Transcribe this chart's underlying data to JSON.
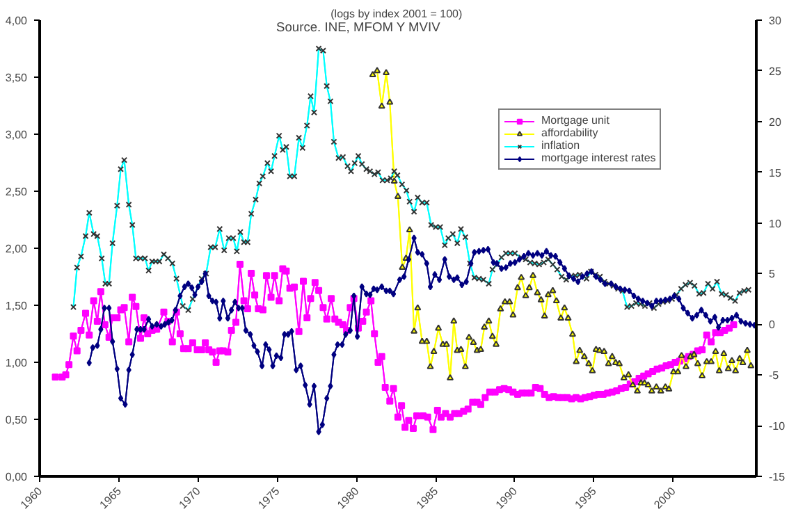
{
  "chart_data": {
    "type": "line",
    "title": "(logs by  index 2001 = 100)",
    "annotations": [
      "Source. INE, MFOM Y MVIV"
    ],
    "xlim": [
      1960,
      2005.25
    ],
    "xticks": [
      1960,
      1965,
      1970,
      1975,
      1980,
      1985,
      1990,
      1995,
      2000
    ],
    "ylim": [
      0,
      4
    ],
    "yticks": [
      {
        "value": 0,
        "label": "0,00"
      },
      {
        "value": 0.5,
        "label": "0,50"
      },
      {
        "value": 1,
        "label": "1,00"
      },
      {
        "value": 1.5,
        "label": "1,50"
      },
      {
        "value": 2,
        "label": "2,00"
      },
      {
        "value": 2.5,
        "label": "2,50"
      },
      {
        "value": 3,
        "label": "3,00"
      },
      {
        "value": 3.5,
        "label": "3,50"
      },
      {
        "value": 4,
        "label": "4,00"
      }
    ],
    "y2lim": [
      -15,
      30
    ],
    "y2ticks": [
      -15,
      -10,
      -5,
      0,
      5,
      10,
      15,
      20,
      25,
      30
    ],
    "grid": false,
    "legend": "top right",
    "series": [
      {
        "name": "Mortgage unit",
        "color": "#ff00ff",
        "marker": "square",
        "x": [
          1960.99,
          1961.42,
          1961.65,
          1961.85,
          1962.13,
          1962.36,
          1962.61,
          1962.9,
          1963.13,
          1963.41,
          1963.64,
          1963.86,
          1964.12,
          1964.38,
          1964.6,
          1964.89,
          1965.12,
          1965.34,
          1965.63,
          1965.85,
          1966.08,
          1966.37,
          1966.59,
          1966.82,
          1967.1,
          1967.39,
          1967.84,
          1968.1,
          1968.38,
          1968.64,
          1968.87,
          1969.09,
          1969.38,
          1969.66,
          1969.95,
          1970.23,
          1970.46,
          1970.68,
          1970.91,
          1971.14,
          1971.37,
          1971.59,
          1971.88,
          1972.11,
          1972.39,
          1972.65,
          1972.9,
          1973.13,
          1973.36,
          1973.58,
          1973.81,
          1974.1,
          1974.32,
          1974.61,
          1974.83,
          1975.12,
          1975.35,
          1975.57,
          1975.8,
          1976.08,
          1976.37,
          1976.65,
          1976.88,
          1977.11,
          1977.39,
          1977.62,
          1977.9,
          1978.13,
          1978.41,
          1978.64,
          1978.87,
          1979.15,
          1979.38,
          1979.61,
          1979.84,
          1980.12,
          1980.4,
          1980.63,
          1980.92,
          1981.14,
          1981.37,
          1981.6,
          1981.82,
          1982.11,
          1982.34,
          1982.62,
          1982.85,
          1983.07,
          1983.3,
          1983.59,
          1983.81,
          1984.21,
          1984.5,
          1984.84,
          1985.12,
          1985.35,
          1985.63,
          1985.92,
          1986.2,
          1986.48,
          1986.77,
          1987.05,
          1987.34,
          1987.62,
          1987.85,
          1988.13,
          1988.42,
          1988.76,
          1989.04,
          1989.33,
          1989.61,
          1989.89,
          1990.18,
          1990.46,
          1990.75,
          1991.03,
          1991.31,
          1991.6,
          1991.88,
          1992.17,
          1992.45,
          1992.74,
          1993.02,
          1993.31,
          1993.59,
          1993.87,
          1994.16,
          1994.44,
          1994.73,
          1995.01,
          1995.29,
          1995.58,
          1995.86,
          1996.15,
          1996.43,
          1996.72,
          1997.0,
          1997.29,
          1997.57,
          1997.85,
          1998.14,
          1998.42,
          1998.71,
          1998.99,
          1999.28,
          1999.56,
          1999.84,
          2000.13,
          2000.41,
          2000.7,
          2000.98,
          2001.27,
          2001.55,
          2001.83,
          2002.12,
          2002.4,
          2002.68,
          2002.97,
          2003.25,
          2003.54,
          2003.82
        ],
        "values": [
          0.87,
          0.87,
          0.89,
          0.98,
          1.23,
          1.1,
          1.28,
          1.43,
          1.24,
          1.54,
          1.36,
          1.62,
          1.33,
          1.22,
          1.39,
          1.39,
          1.46,
          1.48,
          1.18,
          1.57,
          1.49,
          1.21,
          1.39,
          1.25,
          1.28,
          1.29,
          1.44,
          1.36,
          1.18,
          1.44,
          1.25,
          1.12,
          1.12,
          1.17,
          1.11,
          1.11,
          1.17,
          1.11,
          1.09,
          1.0,
          1.1,
          1.1,
          1.09,
          1.28,
          1.35,
          1.86,
          1.54,
          1.47,
          1.78,
          1.59,
          1.47,
          1.46,
          1.76,
          1.57,
          1.76,
          1.54,
          1.82,
          1.8,
          1.65,
          1.66,
          1.27,
          1.71,
          1.39,
          1.56,
          1.7,
          1.63,
          1.48,
          1.38,
          1.56,
          1.38,
          1.35,
          1.33,
          1.28,
          1.48,
          1.56,
          1.3,
          1.36,
          1.44,
          1.54,
          1.25,
          1.0,
          1.05,
          0.78,
          0.66,
          0.77,
          0.52,
          0.62,
          0.43,
          0.49,
          0.42,
          0.53,
          0.53,
          0.52,
          0.41,
          0.58,
          0.52,
          0.55,
          0.52,
          0.55,
          0.55,
          0.57,
          0.59,
          0.65,
          0.65,
          0.63,
          0.69,
          0.74,
          0.74,
          0.76,
          0.77,
          0.76,
          0.74,
          0.72,
          0.73,
          0.73,
          0.73,
          0.78,
          0.77,
          0.72,
          0.69,
          0.7,
          0.69,
          0.69,
          0.69,
          0.68,
          0.69,
          0.68,
          0.69,
          0.7,
          0.71,
          0.72,
          0.72,
          0.73,
          0.74,
          0.75,
          0.77,
          0.78,
          0.81,
          0.83,
          0.86,
          0.88,
          0.9,
          0.92,
          0.94,
          0.95,
          0.97,
          0.98,
          1.0,
          1.01,
          1.03,
          1.05,
          1.07,
          1.1,
          1.11,
          1.24,
          1.18,
          1.26,
          1.26,
          1.28,
          1.3,
          1.33
        ]
      },
      {
        "name": "affordability",
        "color": "#ffff00",
        "marker": "triangle",
        "axis": "y2",
        "x": [
          1981.03,
          1981.31,
          1981.6,
          1981.88,
          1982.11,
          1982.39,
          1982.62,
          1982.9,
          1983.13,
          1983.36,
          1983.64,
          1983.87,
          1984.15,
          1984.44,
          1984.67,
          1984.89,
          1985.18,
          1985.46,
          1985.69,
          1985.92,
          1986.15,
          1986.37,
          1986.6,
          1986.88,
          1987.11,
          1987.39,
          1987.62,
          1987.85,
          1988.08,
          1988.36,
          1988.59,
          1988.82,
          1989.1,
          1989.38,
          1989.67,
          1989.89,
          1990.18,
          1990.41,
          1990.69,
          1990.92,
          1991.15,
          1991.43,
          1991.66,
          1991.88,
          1992.11,
          1992.4,
          1992.63,
          1992.91,
          1993.14,
          1993.37,
          1993.65,
          1993.88,
          1994.1,
          1994.39,
          1994.67,
          1994.9,
          1995.13,
          1995.35,
          1995.64,
          1995.92,
          1996.15,
          1996.37,
          1996.6,
          1996.89,
          1997.18,
          1997.45,
          1997.74,
          1997.97,
          1998.19,
          1998.42,
          1998.65,
          1998.94,
          1999.22,
          1999.51,
          1999.73,
          2000.02,
          2000.3,
          2000.53,
          2000.81,
          2001.09,
          2001.32,
          2001.55,
          2001.83,
          2002.12,
          2002.4,
          2002.68,
          2002.91,
          2003.2,
          2003.48,
          2003.71,
          2003.94,
          2004.2,
          2004.4,
          2004.68,
          2004.91
        ],
        "values": [
          24.6,
          25.0,
          21.5,
          24.8,
          21.9,
          14.1,
          12.6,
          5.6,
          6.5,
          9.3,
          -0.7,
          1.6,
          -1.7,
          -1.7,
          -4.2,
          -2.7,
          -0.4,
          -2.0,
          -2.0,
          -5.3,
          0.3,
          -2.6,
          -2.5,
          -4.2,
          -1.3,
          -1.8,
          -2.6,
          -2.5,
          -0.3,
          0.3,
          -1.2,
          -2.0,
          1.5,
          2.2,
          2.2,
          0.9,
          3.6,
          4.6,
          2.8,
          3.6,
          4.8,
          3.1,
          2.4,
          0.8,
          2.9,
          3.3,
          2.3,
          0.6,
          1.6,
          0.6,
          -1.0,
          -3.7,
          -2.6,
          -3.2,
          -3.9,
          -4.6,
          -2.5,
          -2.6,
          -2.7,
          -3.9,
          -3.2,
          -3.8,
          -3.9,
          -5.3,
          -5.0,
          -6.0,
          -6.6,
          -5.8,
          -5.8,
          -6.0,
          -6.6,
          -6.2,
          -6.6,
          -6.2,
          -6.4,
          -4.7,
          -4.7,
          -3.1,
          -4.2,
          -3.2,
          -3.0,
          -3.9,
          -5.1,
          -3.7,
          -3.7,
          -2.7,
          -4.6,
          -2.9,
          -4.4,
          -3.6,
          -4.6,
          -3.4,
          -3.8,
          -2.6,
          -4.1
        ]
      },
      {
        "name": "inflation",
        "color": "#00ffff",
        "marker": "cross",
        "axis": "y2",
        "x": [
          1962.13,
          1962.36,
          1962.61,
          1962.9,
          1963.13,
          1963.41,
          1963.64,
          1963.92,
          1964.15,
          1964.38,
          1964.6,
          1964.89,
          1965.12,
          1965.34,
          1965.63,
          1965.85,
          1966.08,
          1966.37,
          1966.65,
          1966.88,
          1967.1,
          1967.33,
          1967.56,
          1967.84,
          1968.1,
          1968.38,
          1968.64,
          1969.04,
          1969.38,
          1969.66,
          1970.23,
          1970.51,
          1970.8,
          1971.08,
          1971.37,
          1971.65,
          1971.94,
          1972.22,
          1972.45,
          1972.67,
          1972.9,
          1973.13,
          1973.36,
          1973.64,
          1973.87,
          1974.09,
          1974.38,
          1974.61,
          1974.83,
          1975.12,
          1975.35,
          1975.57,
          1975.8,
          1976.08,
          1976.37,
          1976.6,
          1976.88,
          1977.11,
          1977.33,
          1977.62,
          1977.9,
          1978.13,
          1978.36,
          1978.58,
          1978.87,
          1979.15,
          1979.44,
          1979.66,
          1979.89,
          1980.12,
          1980.35,
          1980.63,
          1980.86,
          1981.14,
          1981.37,
          1981.65,
          1981.94,
          1982.17,
          1982.39,
          1982.59,
          1982.88,
          1983.16,
          1983.36,
          1983.64,
          1983.87,
          1984.15,
          1984.44,
          1984.72,
          1985.01,
          1985.29,
          1985.58,
          1985.8,
          1986.09,
          1986.37,
          1986.6,
          1986.88,
          1987.17,
          1987.45,
          1987.74,
          1988.02,
          1988.36,
          1988.59,
          1988.87,
          1989.16,
          1989.44,
          1989.72,
          1990.01,
          1990.41,
          1990.69,
          1990.97,
          1991.26,
          1991.54,
          1991.83,
          1992.11,
          1992.4,
          1992.68,
          1992.96,
          1993.25,
          1993.53,
          1993.82,
          1994.1,
          1994.53,
          1994.81,
          1995.1,
          1995.38,
          1995.67,
          1995.95,
          1996.23,
          1996.52,
          1996.8,
          1997.09,
          1997.37,
          1997.66,
          1997.94,
          1998.22,
          1998.51,
          1998.79,
          1999.08,
          1999.36,
          1999.65,
          1999.93,
          2000.21,
          2000.5,
          2000.78,
          2001.07,
          2001.35,
          2001.64,
          2001.92,
          2002.2,
          2002.49,
          2002.77,
          2003.06,
          2003.34,
          2003.62,
          2003.91,
          2004.19,
          2004.48,
          2004.76
        ],
        "values": [
          1.7,
          5.6,
          6.7,
          8.7,
          11.0,
          8.9,
          8.7,
          6.5,
          4.0,
          4.0,
          8.0,
          11.7,
          15.3,
          16.2,
          11.8,
          9.8,
          6.5,
          6.5,
          6.5,
          5.3,
          6.2,
          6.2,
          6.2,
          6.9,
          6.5,
          6.0,
          4.5,
          1.8,
          1.4,
          2.5,
          4.5,
          5.0,
          7.6,
          7.6,
          9.4,
          7.3,
          8.5,
          8.5,
          7.2,
          9.1,
          8.1,
          8.1,
          10.9,
          12.3,
          13.9,
          14.6,
          15.9,
          15.1,
          16.6,
          18.6,
          17.2,
          17.5,
          14.6,
          14.6,
          18.4,
          17.4,
          19.6,
          22.5,
          20.9,
          27.2,
          27.0,
          23.5,
          22.0,
          18.0,
          16.4,
          16.5,
          15.6,
          15.1,
          15.9,
          16.6,
          15.8,
          15.3,
          15.1,
          14.8,
          15.0,
          14.2,
          14.2,
          14.4,
          15.1,
          14.7,
          13.8,
          13.2,
          12.1,
          11.1,
          12.5,
          12.0,
          12.0,
          9.8,
          9.6,
          9.6,
          7.8,
          8.5,
          8.9,
          8.0,
          9.4,
          8.6,
          6.0,
          4.6,
          4.5,
          4.4,
          4.0,
          5.4,
          5.9,
          6.6,
          7.0,
          7.0,
          7.0,
          6.6,
          6.4,
          6.1,
          6.0,
          5.9,
          6.1,
          6.4,
          5.9,
          5.4,
          4.7,
          4.4,
          4.7,
          4.8,
          4.9,
          4.5,
          5.2,
          4.9,
          4.7,
          4.2,
          4.0,
          3.8,
          3.5,
          3.3,
          1.7,
          1.8,
          2.1,
          2.0,
          1.8,
          2.1,
          1.6,
          2.0,
          2.2,
          2.3,
          2.5,
          2.9,
          3.5,
          3.9,
          4.1,
          3.8,
          3.0,
          3.1,
          4.0,
          3.5,
          4.2,
          3.0,
          2.9,
          2.6,
          2.3,
          3.1,
          3.3,
          3.4
        ]
      },
      {
        "name": "mortgage interest rates",
        "color": "#000080",
        "marker": "diamond",
        "axis": "y2",
        "x": [
          1963.13,
          1963.35,
          1963.64,
          1963.86,
          1964.09,
          1964.38,
          1964.6,
          1964.89,
          1965.12,
          1965.4,
          1965.63,
          1965.85,
          1966.14,
          1966.37,
          1966.59,
          1966.88,
          1967.1,
          1967.39,
          1967.67,
          1967.9,
          1968.13,
          1968.35,
          1968.58,
          1968.87,
          1969.15,
          1969.38,
          1969.61,
          1969.8,
          1970.0,
          1970.23,
          1970.46,
          1970.68,
          1970.91,
          1971.14,
          1971.37,
          1971.59,
          1971.88,
          1972.11,
          1972.33,
          1972.56,
          1972.79,
          1973.02,
          1973.3,
          1973.53,
          1973.75,
          1974.04,
          1974.27,
          1974.49,
          1974.72,
          1974.95,
          1975.23,
          1975.46,
          1975.69,
          1975.91,
          1976.2,
          1976.48,
          1976.77,
          1977.05,
          1977.33,
          1977.62,
          1977.85,
          1978.13,
          1978.36,
          1978.58,
          1978.81,
          1979.1,
          1979.32,
          1979.61,
          1979.84,
          1980.06,
          1980.35,
          1980.63,
          1980.86,
          1981.09,
          1981.31,
          1981.6,
          1981.88,
          1982.11,
          1982.34,
          1982.73,
          1983.01,
          1983.3,
          1983.64,
          1983.87,
          1984.15,
          1984.44,
          1984.67,
          1984.95,
          1985.24,
          1985.58,
          1985.86,
          1986.15,
          1986.37,
          1986.66,
          1986.94,
          1987.23,
          1987.45,
          1987.74,
          1988.02,
          1988.31,
          1988.65,
          1988.87,
          1989.16,
          1989.44,
          1989.72,
          1990.01,
          1990.29,
          1990.58,
          1990.86,
          1991.15,
          1991.43,
          1991.71,
          1992.0,
          1992.28,
          1992.57,
          1992.85,
          1993.14,
          1993.42,
          1993.71,
          1993.99,
          1994.27,
          1994.56,
          1994.84,
          1995.13,
          1995.41,
          1995.7,
          1996.09,
          1996.38,
          1996.66,
          1996.95,
          1997.23,
          1997.52,
          1997.8,
          1998.08,
          1998.37,
          1998.65,
          1998.94,
          1999.22,
          1999.51,
          1999.79,
          2000.07,
          2000.36,
          2000.64,
          2000.92,
          2001.21,
          2001.49,
          2001.78,
          2002.06,
          2002.35,
          2002.63,
          2002.86,
          2003.14,
          2003.43,
          2003.71,
          2004.0,
          2004.28,
          2004.57,
          2004.85,
          2005.13
        ],
        "values": [
          -3.8,
          -2.3,
          -2.1,
          -0.5,
          1.6,
          1.6,
          -1.7,
          -4.4,
          -7.3,
          -7.9,
          -4.5,
          -3.0,
          -0.5,
          -0.5,
          -0.5,
          0.5,
          -0.2,
          0.0,
          -0.2,
          0.0,
          0.2,
          0.4,
          1.4,
          2.8,
          3.7,
          4.0,
          3.6,
          2.9,
          3.7,
          4.2,
          5.0,
          2.8,
          2.3,
          2.2,
          0.6,
          2.3,
          0.6,
          1.4,
          2.2,
          1.6,
          1.6,
          -0.6,
          -1.0,
          -2.1,
          -2.7,
          -4.1,
          -2.0,
          -2.5,
          -4.1,
          -3.1,
          -3.3,
          -1.0,
          -1.0,
          -0.7,
          -4.5,
          -4.1,
          -6.0,
          -7.9,
          -6.1,
          -10.6,
          -9.9,
          -7.3,
          -6.1,
          -3.0,
          -2.0,
          -2.0,
          -1.0,
          -0.6,
          2.8,
          -1.2,
          3.7,
          3.0,
          2.9,
          3.5,
          3.4,
          3.7,
          3.3,
          3.3,
          3.0,
          4.4,
          4.7,
          6.4,
          8.5,
          7.1,
          6.9,
          6.0,
          3.7,
          4.9,
          4.4,
          6.4,
          4.7,
          4.4,
          4.6,
          3.9,
          4.2,
          6.0,
          7.1,
          7.2,
          7.3,
          7.4,
          6.1,
          6.0,
          5.5,
          5.6,
          6.0,
          6.1,
          6.4,
          6.7,
          7.0,
          6.8,
          7.0,
          6.8,
          7.2,
          6.8,
          6.7,
          6.1,
          5.5,
          4.8,
          4.5,
          4.2,
          4.7,
          5.0,
          5.2,
          4.7,
          4.4,
          4.0,
          4.0,
          3.7,
          3.5,
          3.4,
          3.3,
          2.8,
          2.5,
          2.3,
          2.1,
          1.8,
          2.3,
          2.3,
          2.4,
          2.5,
          2.8,
          2.5,
          1.6,
          1.1,
          0.6,
          0.9,
          1.4,
          0.9,
          0.3,
          0.7,
          -0.3,
          0.4,
          0.4,
          0.6,
          0.9,
          0.3,
          0.1,
          0.0,
          -0.1
        ]
      }
    ]
  }
}
